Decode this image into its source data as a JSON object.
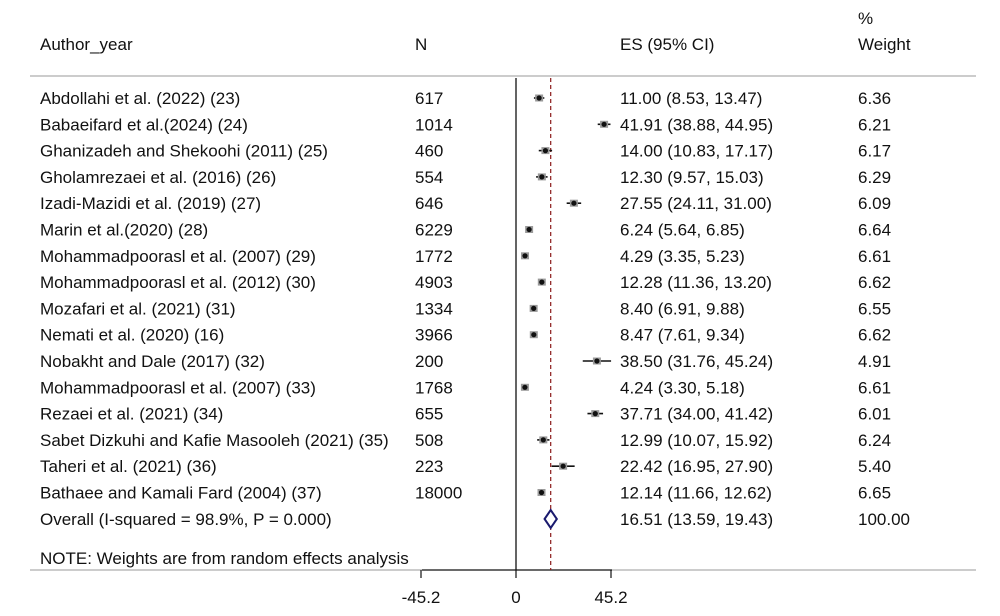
{
  "chart_data": {
    "type": "forest",
    "headers": {
      "author": "Author_year",
      "n": "N",
      "es": "ES (95% CI)",
      "weight_line1": "%",
      "weight_line2": "Weight"
    },
    "studies": [
      {
        "label": "Abdollahi et al. (2022) (23)",
        "n": "617",
        "es": 11.0,
        "lo": 8.53,
        "hi": 13.47,
        "es_text": "11.00 (8.53, 13.47)",
        "weight": "6.36"
      },
      {
        "label": "Babaeifard et al.(2024) (24)",
        "n": "1014",
        "es": 41.91,
        "lo": 38.88,
        "hi": 44.95,
        "es_text": "41.91 (38.88, 44.95)",
        "weight": "6.21"
      },
      {
        "label": "Ghanizadeh and Shekoohi (2011) (25)",
        "n": "460",
        "es": 14.0,
        "lo": 10.83,
        "hi": 17.17,
        "es_text": "14.00 (10.83, 17.17)",
        "weight": "6.17"
      },
      {
        "label": "Gholamrezaei et al. (2016) (26)",
        "n": "554",
        "es": 12.3,
        "lo": 9.57,
        "hi": 15.03,
        "es_text": "12.30 (9.57, 15.03)",
        "weight": "6.29"
      },
      {
        "label": "Izadi-Mazidi et al. (2019) (27)",
        "n": "646",
        "es": 27.55,
        "lo": 24.11,
        "hi": 31.0,
        "es_text": "27.55 (24.11, 31.00)",
        "weight": "6.09"
      },
      {
        "label": "Marin et al.(2020) (28)",
        "n": "6229",
        "es": 6.24,
        "lo": 5.64,
        "hi": 6.85,
        "es_text": "6.24 (5.64, 6.85)",
        "weight": "6.64"
      },
      {
        "label": "Mohammadpoorasl et al. (2007) (29)",
        "n": "1772",
        "es": 4.29,
        "lo": 3.35,
        "hi": 5.23,
        "es_text": "4.29 (3.35, 5.23)",
        "weight": "6.61"
      },
      {
        "label": "Mohammadpoorasl et al. (2012) (30)",
        "n": "4903",
        "es": 12.28,
        "lo": 11.36,
        "hi": 13.2,
        "es_text": "12.28 (11.36, 13.20)",
        "weight": "6.62"
      },
      {
        "label": "Mozafari et al. (2021) (31)",
        "n": "1334",
        "es": 8.4,
        "lo": 6.91,
        "hi": 9.88,
        "es_text": "8.40 (6.91, 9.88)",
        "weight": "6.55"
      },
      {
        "label": "Nemati et al. (2020) (16)",
        "n": "3966",
        "es": 8.47,
        "lo": 7.61,
        "hi": 9.34,
        "es_text": "8.47 (7.61, 9.34)",
        "weight": "6.62"
      },
      {
        "label": "Nobakht and Dale (2017) (32)",
        "n": "200",
        "es": 38.5,
        "lo": 31.76,
        "hi": 45.24,
        "es_text": "38.50 (31.76, 45.24)",
        "weight": "4.91"
      },
      {
        "label": "Mohammadpoorasl et al. (2007) (33)",
        "n": "1768",
        "es": 4.24,
        "lo": 3.3,
        "hi": 5.18,
        "es_text": "4.24 (3.30, 5.18)",
        "weight": "6.61"
      },
      {
        "label": "Rezaei et al. (2021) (34)",
        "n": "655",
        "es": 37.71,
        "lo": 34.0,
        "hi": 41.42,
        "es_text": "37.71 (34.00, 41.42)",
        "weight": "6.01"
      },
      {
        "label": "Sabet Dizkuhi and Kafie Masooleh (2021) (35)",
        "n": "508",
        "es": 12.99,
        "lo": 10.07,
        "hi": 15.92,
        "es_text": "12.99 (10.07, 15.92)",
        "weight": "6.24"
      },
      {
        "label": "Taheri et al. (2021) (36)",
        "n": "223",
        "es": 22.42,
        "lo": 16.95,
        "hi": 27.9,
        "es_text": "22.42 (16.95, 27.90)",
        "weight": "5.40"
      },
      {
        "label": "Bathaee and Kamali Fard (2004) (37)",
        "n": "18000",
        "es": 12.14,
        "lo": 11.66,
        "hi": 12.62,
        "es_text": "12.14 (11.66, 12.62)",
        "weight": "6.65"
      }
    ],
    "overall": {
      "label": "Overall  (I-squared = 98.9%, P = 0.000)",
      "es": 16.51,
      "lo": 13.59,
      "hi": 19.43,
      "es_text": "16.51 (13.59, 19.43)",
      "weight": "100.00"
    },
    "note": "NOTE: Weights are from random effects analysis",
    "x_ticks": [
      {
        "value": -45.2,
        "label": "-45.2"
      },
      {
        "value": 0,
        "label": "0"
      },
      {
        "value": 45.2,
        "label": "45.2"
      }
    ],
    "xlim": [
      -45.2,
      45.2
    ],
    "null_line": 0,
    "overall_line": 16.51,
    "colors": {
      "text": "#111111",
      "marker": "#111111",
      "diamond": "#1a1a6e",
      "overall_line": "#8b1a1a",
      "rule": "#999999"
    }
  }
}
